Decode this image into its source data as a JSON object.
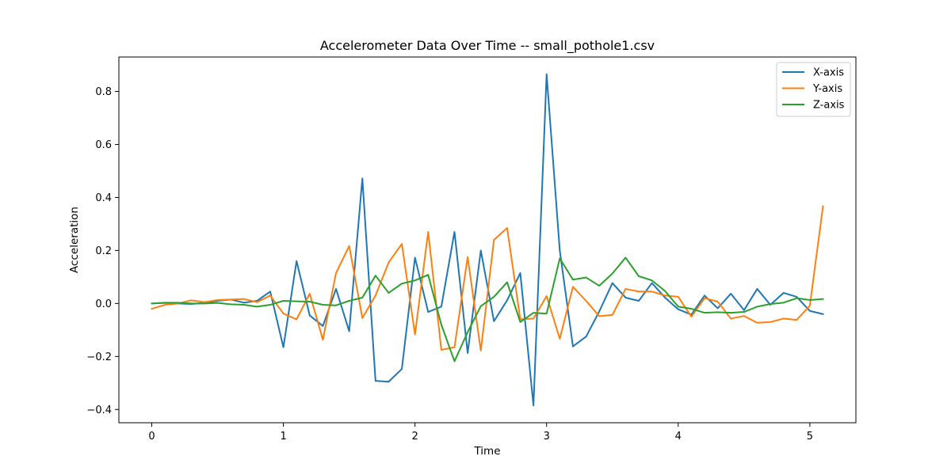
{
  "chart_data": {
    "type": "line",
    "title": "Accelerometer Data Over Time -- small_pothole1.csv",
    "xlabel": "Time",
    "ylabel": "Acceleration",
    "xlim": [
      -0.25,
      5.35
    ],
    "ylim": [
      -0.45,
      0.93
    ],
    "xticks": [
      0,
      1,
      2,
      3,
      4,
      5
    ],
    "yticks": [
      -0.4,
      -0.2,
      0.0,
      0.2,
      0.4,
      0.6,
      0.8
    ],
    "ytick_labels": [
      "−0.4",
      "−0.2",
      "0.0",
      "0.2",
      "0.4",
      "0.6",
      "0.8"
    ],
    "xtick_labels": [
      "0",
      "1",
      "2",
      "3",
      "4",
      "5"
    ],
    "grid": false,
    "legend_position": "top-right",
    "x": [
      0,
      0.1,
      0.2,
      0.3,
      0.4,
      0.5,
      0.6,
      0.7,
      0.8,
      0.9,
      1.0,
      1.1,
      1.2,
      1.3,
      1.4,
      1.5,
      1.6,
      1.7,
      1.8,
      1.9,
      2.0,
      2.1,
      2.2,
      2.3,
      2.4,
      2.5,
      2.6,
      2.7,
      2.8,
      2.9,
      3.0,
      3.1,
      3.2,
      3.3,
      3.4,
      3.5,
      3.6,
      3.7,
      3.8,
      3.9,
      4.0,
      4.1,
      4.2,
      4.3,
      4.4,
      4.5,
      4.6,
      4.7,
      4.8,
      4.9,
      5.0,
      5.1
    ],
    "series": [
      {
        "name": "X-axis",
        "color": "#1f77b4",
        "values": [
          0.0,
          0.002,
          0.0,
          -0.002,
          0.002,
          0.01,
          0.015,
          0.003,
          0.01,
          0.045,
          -0.165,
          0.16,
          -0.045,
          -0.085,
          0.055,
          -0.105,
          0.472,
          -0.292,
          -0.295,
          -0.247,
          0.173,
          -0.032,
          -0.012,
          0.27,
          -0.187,
          0.2,
          -0.067,
          0.012,
          0.115,
          -0.385,
          0.865,
          0.2,
          -0.162,
          -0.125,
          -0.03,
          0.077,
          0.022,
          0.01,
          0.077,
          0.022,
          -0.022,
          -0.042,
          0.03,
          -0.018,
          0.037,
          -0.025,
          0.055,
          -0.005,
          0.04,
          0.025,
          -0.028,
          -0.04
        ]
      },
      {
        "name": "Y-axis",
        "color": "#ff7f0e",
        "values": [
          -0.02,
          -0.005,
          0.0,
          0.012,
          0.005,
          0.013,
          0.015,
          0.017,
          0.005,
          0.03,
          -0.038,
          -0.06,
          0.037,
          -0.137,
          0.115,
          0.217,
          -0.055,
          0.03,
          0.155,
          0.225,
          -0.117,
          0.27,
          -0.175,
          -0.165,
          0.175,
          -0.178,
          0.24,
          0.285,
          -0.06,
          -0.057,
          0.028,
          -0.133,
          0.063,
          0.01,
          -0.048,
          -0.043,
          0.055,
          0.045,
          0.045,
          0.03,
          0.025,
          -0.05,
          0.02,
          0.007,
          -0.057,
          -0.047,
          -0.073,
          -0.07,
          -0.057,
          -0.062,
          -0.008,
          0.367
        ]
      },
      {
        "name": "Z-axis",
        "color": "#2ca02c",
        "values": [
          0.0,
          0.003,
          0.003,
          0.0,
          0.0,
          0.002,
          -0.003,
          -0.005,
          -0.012,
          -0.005,
          0.01,
          0.008,
          0.007,
          -0.005,
          -0.007,
          0.01,
          0.022,
          0.105,
          0.04,
          0.075,
          0.087,
          0.108,
          -0.08,
          -0.218,
          -0.108,
          -0.01,
          0.025,
          0.08,
          -0.07,
          -0.035,
          -0.038,
          0.17,
          0.09,
          0.098,
          0.067,
          0.113,
          0.173,
          0.103,
          0.087,
          0.047,
          -0.012,
          -0.02,
          -0.035,
          -0.033,
          -0.035,
          -0.032,
          -0.012,
          -0.002,
          0.003,
          0.02,
          0.013,
          0.017
        ]
      }
    ]
  }
}
